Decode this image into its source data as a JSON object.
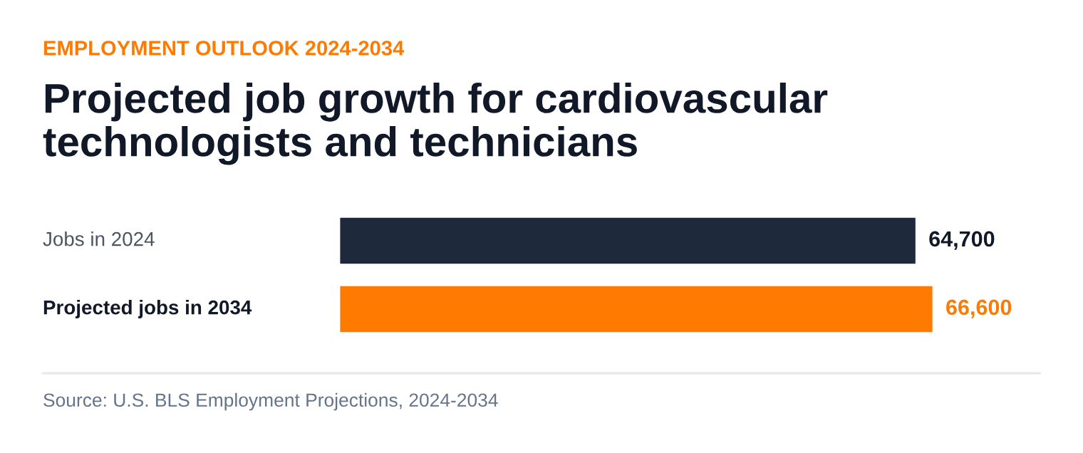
{
  "chart_data": {
    "type": "bar",
    "orientation": "horizontal",
    "subtitle": "EMPLOYMENT OUTLOOK 2024-2034",
    "title": "Projected job growth for cardiovascular\ntechnologists and technicians",
    "categories": [
      "Jobs in 2024",
      "Projected jobs in 2034"
    ],
    "values": [
      64700,
      66600
    ],
    "colors": [
      "#1e293b",
      "#ff7a00"
    ],
    "value_labels": [
      "64,700",
      "66,600"
    ],
    "annotations": [
      "Source: U.S. BLS Employment Projections, 2024-2034"
    ],
    "legend": false
  }
}
